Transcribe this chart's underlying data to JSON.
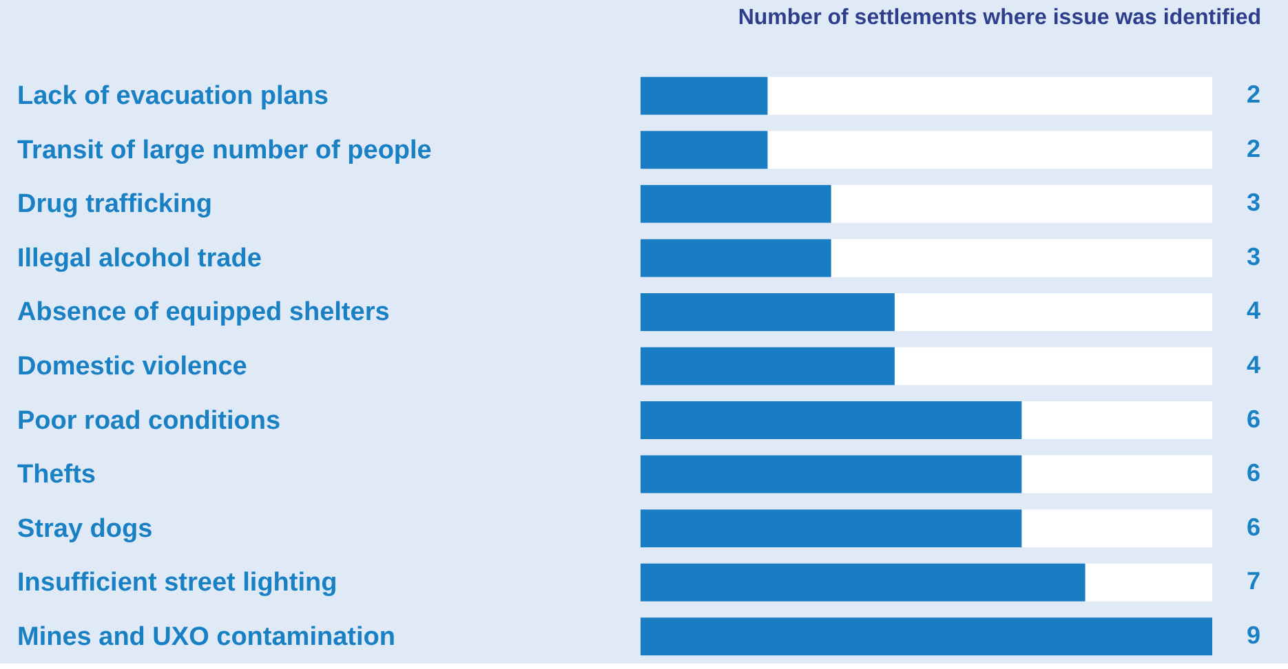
{
  "chart_data": {
    "type": "bar",
    "orientation": "horizontal",
    "xlabel": "Number of settlements where issue was identified",
    "categories": [
      "Lack of evacuation plans",
      "Transit of large number of people",
      "Drug trafficking",
      "Illegal alcohol trade",
      "Absence of equipped shelters",
      "Domestic violence",
      "Poor road conditions",
      "Thefts",
      "Stray dogs",
      "Insufficient street lighting",
      "Mines and UXO contamination"
    ],
    "values": [
      2,
      2,
      3,
      3,
      4,
      4,
      6,
      6,
      6,
      7,
      9
    ],
    "color": "#1a7dc4",
    "xlim": [
      0,
      9
    ],
    "data_labels": true,
    "tick_labels": "y",
    "grid": false
  }
}
